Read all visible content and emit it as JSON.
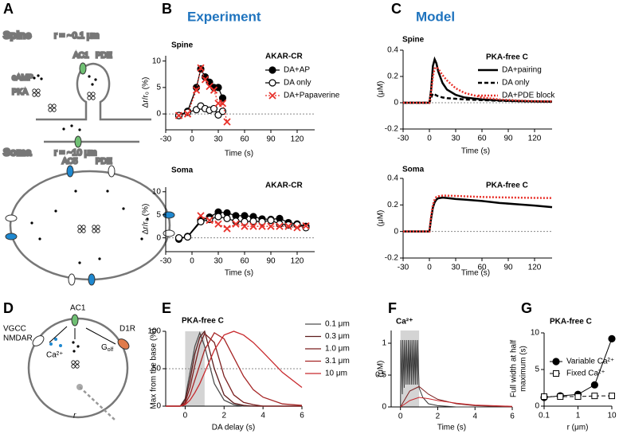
{
  "figure": {
    "panel_labels": [
      "A",
      "B",
      "C",
      "D",
      "E",
      "F",
      "G"
    ],
    "headers": [
      "Experiment",
      "Model"
    ],
    "diagram_a": {
      "spine_title": "Spine",
      "spine_radius": "r = ~0.1 μm",
      "camp": "cAMP",
      "pka": "PKA",
      "ac1": "AC1",
      "pde_spine": "PDE",
      "soma_title": "Soma",
      "soma_radius": "r = ~10 μm",
      "ac5": "AC5",
      "pde_soma": "PDE"
    },
    "diagram_d": {
      "vgcc": "VGCC",
      "nmdar": "NMDAR",
      "ac1": "AC1",
      "d1r": "D1R",
      "ca": "Ca²⁺",
      "golf_base": "G",
      "golf_sub": "olf",
      "radius": "r"
    }
  },
  "chart_data": [
    {
      "type": "line",
      "title": "Spine",
      "annotation": "AKAR-CR",
      "xlabel": "Time (s)",
      "ylabel": "Δr/r₀ (%)",
      "x": [
        -15,
        -5,
        5,
        10,
        15,
        20,
        25,
        30,
        35,
        40
      ],
      "series": [
        {
          "name": "DA+AP",
          "color": "#000000",
          "marker": "filled-circle",
          "dash": "solid",
          "values": [
            -0.3,
            0.5,
            5,
            8.5,
            7,
            6,
            5,
            5,
            3,
            null
          ]
        },
        {
          "name": "DA only",
          "color": "#000000",
          "marker": "open-circle",
          "dash": "solid",
          "values": [
            -0.3,
            0.3,
            0.8,
            1.5,
            1,
            0.7,
            1,
            -0.2,
            0.5,
            null
          ]
        },
        {
          "name": "DA+Papaverine",
          "color": "#e8312a",
          "marker": "x",
          "dash": "dotted",
          "values": [
            -0.3,
            0,
            4.5,
            8.7,
            6.5,
            5.2,
            4.5,
            2,
            2,
            -1.5
          ]
        }
      ],
      "xlim": [
        -30,
        140
      ],
      "xticks": [
        -30,
        0,
        30,
        60,
        90,
        120
      ],
      "ylim": [
        -3,
        11
      ],
      "yticks": [
        0,
        5,
        10
      ],
      "hline": 0,
      "legend": "upper right"
    },
    {
      "type": "line",
      "title": "Soma",
      "annotation": "AKAR-CR",
      "xlabel": "Time (s)",
      "ylabel": "Δr/r₀ (%)",
      "x": [
        -15,
        -5,
        10,
        20,
        30,
        40,
        50,
        60,
        70,
        80,
        90,
        100,
        110,
        120,
        130
      ],
      "series": [
        {
          "color": "#000000",
          "marker": "filled-circle",
          "dash": "solid",
          "values": [
            -0.3,
            0.3,
            3.8,
            4.5,
            5.6,
            5.4,
            4.8,
            4.8,
            4.6,
            4.1,
            4,
            4.2,
            3.3,
            3,
            2.5
          ]
        },
        {
          "color": "#000000",
          "marker": "open-circle",
          "dash": "solid",
          "values": [
            0,
            0.2,
            3.5,
            4,
            4.6,
            4.2,
            3.6,
            3.5,
            3.6,
            3.5,
            3.8,
            3,
            2.8,
            2.8,
            2.2
          ]
        },
        {
          "color": "#e8312a",
          "marker": "x",
          "dash": "dotted",
          "values": [
            null,
            null,
            4.8,
            3.8,
            3,
            2,
            3,
            2.5,
            2.5,
            2.5,
            2.5,
            2.5,
            2.5,
            2.2,
            2.6
          ]
        }
      ],
      "xlim": [
        -30,
        140
      ],
      "xticks": [
        -30,
        0,
        30,
        60,
        90,
        120
      ],
      "ylim": [
        -3,
        11
      ],
      "yticks": [
        0,
        5,
        10
      ],
      "hline": 0
    },
    {
      "type": "line",
      "title": "Spine",
      "annotation": "PKA-free C",
      "xlabel": "Time (s)",
      "ylabel": "(μM)",
      "x": [
        -30,
        0,
        2,
        4,
        6,
        8,
        10,
        15,
        20,
        30,
        40,
        60,
        80,
        100,
        120,
        140
      ],
      "series": [
        {
          "name": "DA+pairing",
          "color": "#000000",
          "dash": "solid",
          "values": [
            0,
            0,
            0.1,
            0.28,
            0.33,
            0.3,
            0.24,
            0.15,
            0.1,
            0.06,
            0.04,
            0.025,
            0.018,
            0.013,
            0.01,
            0.008
          ]
        },
        {
          "name": "DA only",
          "color": "#000000",
          "dash": "dashed",
          "values": [
            0,
            0,
            0.04,
            0.07,
            0.065,
            0.055,
            0.05,
            0.04,
            0.035,
            0.03,
            0.025,
            0.02,
            0.015,
            0.012,
            0.01,
            0.008
          ]
        },
        {
          "name": "DA+PDE block",
          "color": "#e8312a",
          "dash": "dotted",
          "values": [
            0,
            0,
            0.08,
            0.2,
            0.26,
            0.27,
            0.26,
            0.21,
            0.17,
            0.11,
            0.075,
            0.04,
            0.025,
            0.017,
            0.012,
            0.01
          ]
        }
      ],
      "xlim": [
        -30,
        140
      ],
      "xticks": [
        -30,
        0,
        30,
        60,
        90,
        120
      ],
      "ylim": [
        -0.2,
        0.4
      ],
      "yticks": [
        -0.2,
        0,
        0.2,
        0.4
      ],
      "hline": 0,
      "legend": "upper right"
    },
    {
      "type": "line",
      "title": "Soma",
      "annotation": "PKA-free C",
      "xlabel": "Time (s)",
      "ylabel": "(μM)",
      "x": [
        -30,
        0,
        2,
        4,
        6,
        8,
        10,
        15,
        20,
        30,
        40,
        60,
        80,
        100,
        120,
        140
      ],
      "series": [
        {
          "color": "#000000",
          "dash": "solid",
          "values": [
            0,
            0,
            0.1,
            0.18,
            0.22,
            0.24,
            0.25,
            0.255,
            0.252,
            0.245,
            0.24,
            0.23,
            0.215,
            0.205,
            0.195,
            0.183
          ]
        },
        {
          "color": "#e8312a",
          "dash": "dotted",
          "values": [
            0,
            0,
            0.12,
            0.2,
            0.24,
            0.26,
            0.265,
            0.27,
            0.27,
            0.268,
            0.265,
            0.26,
            0.257,
            0.255,
            0.253,
            0.252
          ]
        }
      ],
      "xlim": [
        -30,
        140
      ],
      "xticks": [
        -30,
        0,
        30,
        60,
        90,
        120
      ],
      "ylim": [
        -0.2,
        0.4
      ],
      "yticks": [
        -0.2,
        0,
        0.2,
        0.4
      ],
      "hline": 0
    },
    {
      "type": "line",
      "title": "PKA-free C",
      "xlabel": "DA delay (s)",
      "ylabel": "Max from the base (%)",
      "x": [
        -1,
        -0.25,
        0,
        0.25,
        0.5,
        0.75,
        1,
        1.5,
        2,
        2.5,
        3,
        3.5,
        4,
        5,
        6
      ],
      "series": [
        {
          "name": "0.1 μm",
          "color": "#4d4d4d",
          "dash": "solid",
          "values": [
            0,
            0,
            10,
            45,
            80,
            98,
            80,
            30,
            8,
            2,
            0,
            0,
            0,
            0,
            0
          ]
        },
        {
          "name": "0.3 μm",
          "color": "#5c1c1c",
          "dash": "solid",
          "values": [
            0,
            0,
            8,
            35,
            70,
            92,
            100,
            50,
            15,
            4,
            1,
            0,
            0,
            0,
            0
          ]
        },
        {
          "name": "1.0 μm",
          "color": "#7a1e1e",
          "dash": "solid",
          "values": [
            0,
            0,
            5,
            25,
            55,
            82,
            97,
            85,
            40,
            15,
            5,
            2,
            0,
            0,
            0
          ]
        },
        {
          "name": "3.1 μm",
          "color": "#a52424",
          "dash": "solid",
          "values": [
            0,
            0,
            3,
            15,
            35,
            55,
            75,
            98,
            90,
            65,
            40,
            22,
            12,
            3,
            1
          ]
        },
        {
          "name": "10 μm",
          "color": "#c8282c",
          "dash": "solid",
          "values": [
            0,
            0,
            2,
            8,
            18,
            30,
            45,
            75,
            95,
            100,
            95,
            85,
            72,
            45,
            25
          ]
        }
      ],
      "xlim": [
        -1,
        6
      ],
      "xticks": [
        0,
        2,
        4,
        6
      ],
      "ylim": [
        0,
        100
      ],
      "yticks": [
        0,
        50,
        100
      ],
      "hline": 50,
      "shade": [
        0,
        1
      ],
      "legend": "outside right"
    },
    {
      "type": "line",
      "title": "Ca²⁺",
      "xlabel": "Time (s)",
      "ylabel": "(μM)",
      "series": [
        {
          "color": "#333333",
          "dash": "solid",
          "x": [
            0,
            0.02,
            0.1,
            0.12,
            0.2,
            0.22,
            0.3,
            0.32,
            0.4,
            0.42,
            0.5,
            0.52,
            0.6,
            0.62,
            0.7,
            0.72,
            0.8,
            0.82,
            0.9,
            0.92,
            1,
            1.2,
            1.5,
            2,
            3,
            6
          ],
          "values": [
            0,
            1.05,
            0.2,
            1.05,
            0.3,
            1.05,
            0.35,
            1.05,
            0.35,
            1.05,
            0.35,
            1.05,
            0.35,
            1.05,
            0.35,
            1.05,
            0.35,
            1.05,
            0.35,
            1.05,
            0.3,
            0.15,
            0.05,
            0.02,
            0,
            0
          ]
        },
        {
          "color": "#7a1e1e",
          "dash": "solid",
          "x": [
            0,
            0.5,
            1,
            1.5,
            2,
            3,
            4,
            5,
            6
          ],
          "values": [
            0,
            0.25,
            0.32,
            0.2,
            0.12,
            0.05,
            0.02,
            0.01,
            0
          ]
        },
        {
          "color": "#c8282c",
          "dash": "solid",
          "x": [
            0,
            0.5,
            1,
            1.5,
            2,
            3,
            4,
            5,
            6
          ],
          "values": [
            0,
            0.1,
            0.15,
            0.13,
            0.1,
            0.06,
            0.03,
            0.02,
            0.01
          ]
        }
      ],
      "xlim": [
        -0.5,
        6
      ],
      "xticks": [
        0,
        2,
        4,
        6
      ],
      "ylim": [
        0,
        1.2
      ],
      "yticks": [
        0,
        0.5,
        1
      ],
      "shade": [
        0,
        1
      ]
    },
    {
      "type": "line",
      "title": "PKA-free C",
      "xlabel": "r (μm)",
      "ylabel": [
        "Full width at half",
        "maximum (s)"
      ],
      "xscale": "log",
      "x": [
        0.1,
        0.3,
        1,
        3.1,
        10
      ],
      "series": [
        {
          "name": "Variable Ca²⁺",
          "color": "#000000",
          "marker": "filled-circle",
          "dash": "solid",
          "values": [
            1.2,
            1.4,
            1.6,
            2.9,
            9.2
          ]
        },
        {
          "name": "Fixed Ca²⁺",
          "color": "#000000",
          "marker": "open-square",
          "dash": "dashed",
          "values": [
            1.3,
            1.3,
            1.3,
            1.4,
            1.4
          ]
        }
      ],
      "xlim": [
        0.1,
        10
      ],
      "xticks": [
        0.1,
        1,
        10
      ],
      "ylim": [
        0,
        10
      ],
      "yticks": [
        0,
        5,
        10
      ],
      "legend": "center right"
    }
  ]
}
